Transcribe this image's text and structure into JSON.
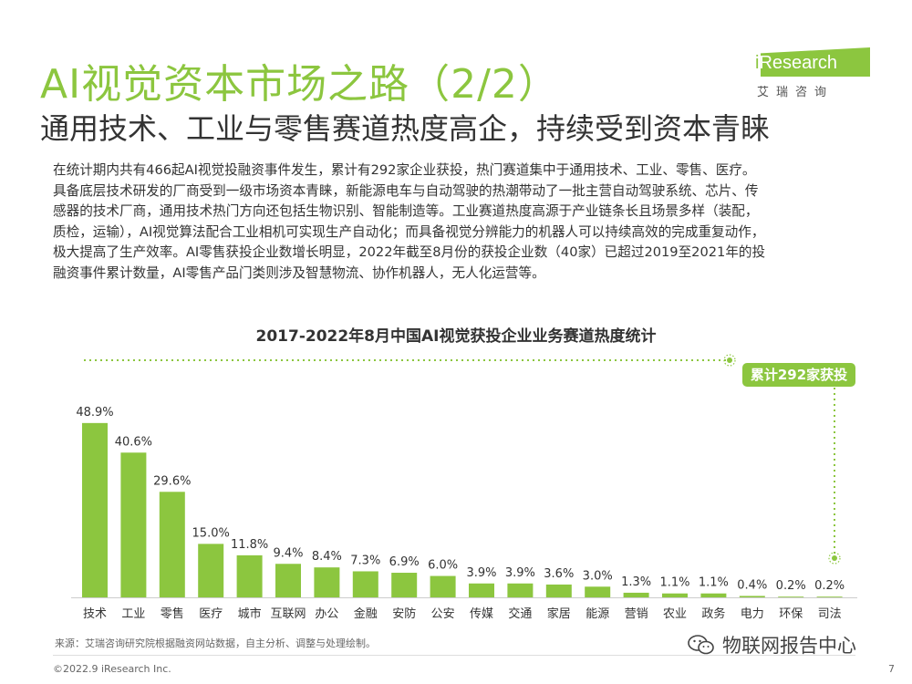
{
  "header": {
    "title": "AI视觉资本市场之路（2/2）",
    "subtitle": "通用技术、工业与零售赛道热度高企，持续受到资本青睐"
  },
  "logo": {
    "name_i": "i",
    "name_rest": "Research",
    "sub": "艾瑞咨询"
  },
  "intro": [
    "在统计期内共有466起AI视觉投融资事件发生，累计有292家企业获投，热门赛道集中于通用技术、工业、零售、医疗。",
    "具备底层技术研发的厂商受到一级市场资本青睐，新能源电车与自动驾驶的热潮带动了一批主营自动驾驶系统、芯片、传",
    "感器的技术厂商，通用技术热门方向还包括生物识别、智能制造等。工业赛道热度高源于产业链条长且场景多样（装配，",
    "质检，运输），AI视觉算法配合工业相机可实现生产自动化；而具备视觉分辨能力的机器人可以持续高效的完成重复动作，",
    "极大提高了生产效率。AI零售获投企业数增长明显，2022年截至8月份的获投企业数（40家）已超过2019至2021年的投",
    "融资事件累计数量，AI零售产品门类则涉及智慧物流、协作机器人，无人化运营等。"
  ],
  "chart_data": {
    "type": "bar",
    "title": "2017-2022年8月中国AI视觉获投企业业务赛道热度统计",
    "annotation": "累计292家获投",
    "categories": [
      "技术",
      "工业",
      "零售",
      "医疗",
      "城市",
      "互联网",
      "办公",
      "金融",
      "安防",
      "公安",
      "传媒",
      "交通",
      "家居",
      "能源",
      "营销",
      "农业",
      "政务",
      "电力",
      "环保",
      "司法"
    ],
    "values": [
      48.9,
      40.6,
      29.6,
      15.0,
      11.8,
      9.4,
      8.4,
      7.3,
      6.9,
      6.0,
      3.9,
      3.9,
      3.6,
      3.0,
      1.3,
      1.1,
      1.1,
      0.4,
      0.2,
      0.2
    ],
    "labels": [
      "48.9%",
      "40.6%",
      "29.6%",
      "15.0%",
      "11.8%",
      "9.4%",
      "8.4%",
      "7.3%",
      "6.9%",
      "6.0%",
      "3.9%",
      "3.9%",
      "3.6%",
      "3.0%",
      "1.3%",
      "1.1%",
      "1.1%",
      "0.4%",
      "0.2%",
      "0.2%"
    ],
    "ylim": [
      0,
      55
    ],
    "bar_color": "#8cc63f",
    "grid": false
  },
  "footer": {
    "source": "来源：艾瑞咨询研究院根据融资网站数据，自主分析、调整与处理绘制。",
    "copyright": "©2022.9 iResearch Inc.",
    "page": "7",
    "watermark": "物联网报告中心"
  }
}
